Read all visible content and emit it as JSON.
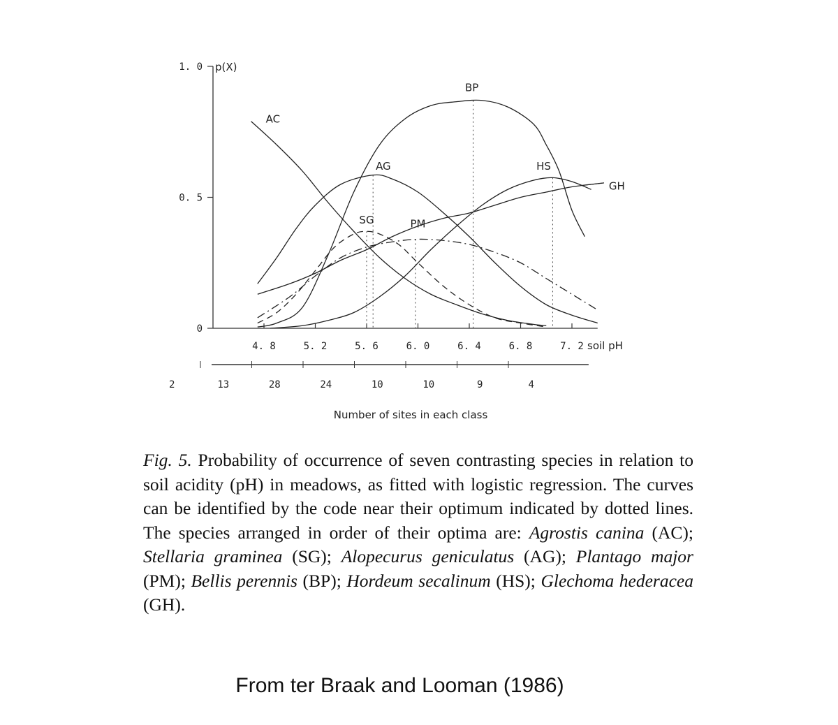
{
  "chart_data": {
    "type": "line",
    "title": "",
    "xlabel": "soil pH",
    "ylabel": "p(X)",
    "xlim": [
      4.55,
      7.4
    ],
    "ylim": [
      0,
      1.0
    ],
    "x_ticks": [
      4.8,
      5.2,
      5.6,
      6.0,
      6.4,
      6.8,
      7.2
    ],
    "x_tick_labels": [
      "4. 8",
      "5. 2",
      "5. 6",
      "6. 0",
      "6. 4",
      "6. 8",
      "7. 2"
    ],
    "y_ticks": [
      0,
      0.5,
      1.0
    ],
    "y_tick_labels": [
      "0",
      "0. 5",
      "1. 0"
    ],
    "grid": false,
    "legend": "none",
    "series": [
      {
        "name": "AC",
        "style": "solid",
        "points": [
          [
            4.7,
            0.79
          ],
          [
            4.9,
            0.7
          ],
          [
            5.1,
            0.6
          ],
          [
            5.3,
            0.48
          ],
          [
            5.5,
            0.37
          ],
          [
            5.7,
            0.27
          ],
          [
            5.9,
            0.19
          ],
          [
            6.1,
            0.13
          ],
          [
            6.3,
            0.09
          ],
          [
            6.5,
            0.055
          ],
          [
            6.7,
            0.03
          ],
          [
            6.9,
            0.015
          ],
          [
            7.0,
            0.01
          ]
        ]
      },
      {
        "name": "SG",
        "style": "dashed",
        "points": [
          [
            4.75,
            0.02
          ],
          [
            4.9,
            0.06
          ],
          [
            5.05,
            0.13
          ],
          [
            5.2,
            0.22
          ],
          [
            5.35,
            0.31
          ],
          [
            5.5,
            0.36
          ],
          [
            5.6,
            0.37
          ],
          [
            5.7,
            0.36
          ],
          [
            5.85,
            0.32
          ],
          [
            6.0,
            0.25
          ],
          [
            6.2,
            0.16
          ],
          [
            6.4,
            0.09
          ],
          [
            6.6,
            0.04
          ],
          [
            6.8,
            0.02
          ],
          [
            7.0,
            0.005
          ]
        ]
      },
      {
        "name": "AG",
        "style": "solid",
        "points": [
          [
            4.75,
            0.17
          ],
          [
            4.9,
            0.27
          ],
          [
            5.05,
            0.38
          ],
          [
            5.2,
            0.47
          ],
          [
            5.4,
            0.55
          ],
          [
            5.65,
            0.585
          ],
          [
            5.8,
            0.57
          ],
          [
            6.0,
            0.52
          ],
          [
            6.2,
            0.44
          ],
          [
            6.4,
            0.35
          ],
          [
            6.6,
            0.25
          ],
          [
            6.8,
            0.16
          ],
          [
            7.0,
            0.09
          ],
          [
            7.2,
            0.05
          ],
          [
            7.4,
            0.02
          ]
        ]
      },
      {
        "name": "PM",
        "style": "dashdot",
        "points": [
          [
            4.75,
            0.04
          ],
          [
            5.0,
            0.12
          ],
          [
            5.2,
            0.2
          ],
          [
            5.4,
            0.27
          ],
          [
            5.6,
            0.31
          ],
          [
            5.8,
            0.33
          ],
          [
            6.0,
            0.34
          ],
          [
            6.2,
            0.335
          ],
          [
            6.4,
            0.32
          ],
          [
            6.6,
            0.29
          ],
          [
            6.8,
            0.25
          ],
          [
            7.0,
            0.19
          ],
          [
            7.2,
            0.13
          ],
          [
            7.4,
            0.07
          ]
        ]
      },
      {
        "name": "BP",
        "style": "solid",
        "points": [
          [
            4.75,
            0.005
          ],
          [
            4.9,
            0.02
          ],
          [
            5.1,
            0.08
          ],
          [
            5.3,
            0.28
          ],
          [
            5.5,
            0.52
          ],
          [
            5.7,
            0.7
          ],
          [
            5.9,
            0.8
          ],
          [
            6.1,
            0.85
          ],
          [
            6.3,
            0.865
          ],
          [
            6.5,
            0.87
          ],
          [
            6.7,
            0.845
          ],
          [
            6.9,
            0.78
          ],
          [
            7.0,
            0.7
          ],
          [
            7.1,
            0.6
          ],
          [
            7.2,
            0.45
          ],
          [
            7.3,
            0.35
          ]
        ]
      },
      {
        "name": "HS",
        "style": "solid",
        "points": [
          [
            4.85,
            0.0
          ],
          [
            5.1,
            0.01
          ],
          [
            5.3,
            0.03
          ],
          [
            5.5,
            0.06
          ],
          [
            5.7,
            0.12
          ],
          [
            5.9,
            0.2
          ],
          [
            6.1,
            0.3
          ],
          [
            6.3,
            0.39
          ],
          [
            6.5,
            0.47
          ],
          [
            6.7,
            0.53
          ],
          [
            6.9,
            0.565
          ],
          [
            7.05,
            0.575
          ],
          [
            7.2,
            0.56
          ],
          [
            7.35,
            0.53
          ]
        ]
      },
      {
        "name": "GH",
        "style": "solid",
        "points": [
          [
            4.75,
            0.13
          ],
          [
            5.0,
            0.17
          ],
          [
            5.2,
            0.21
          ],
          [
            5.4,
            0.26
          ],
          [
            5.6,
            0.3
          ],
          [
            5.8,
            0.35
          ],
          [
            6.0,
            0.39
          ],
          [
            6.2,
            0.42
          ],
          [
            6.4,
            0.44
          ],
          [
            6.6,
            0.47
          ],
          [
            6.8,
            0.5
          ],
          [
            7.0,
            0.52
          ],
          [
            7.2,
            0.54
          ],
          [
            7.45,
            0.555
          ]
        ]
      }
    ],
    "optimum_lines": [
      5.6,
      5.65,
      5.98,
      6.43,
      7.05
    ],
    "curve_labels": [
      "AC",
      "SG",
      "AG",
      "PM",
      "BP",
      "HS",
      "GH"
    ],
    "sites": {
      "label": "Number of sites in each class",
      "counts": [
        "2",
        "13",
        "28",
        "24",
        "10",
        "10",
        "9",
        "4"
      ]
    }
  },
  "caption": {
    "fig": "Fig. 5.",
    "t1": " Probability of occurrence of seven contrasting species in relation to soil acidity (pH) in meadows, as fitted with logistic regression. The curves can be identified by the code near their optimum indicated by dotted lines. The species arranged in order of their optima are: ",
    "s1": "Agrostis canina",
    "t2": " (AC); ",
    "s2": "Stellaria graminea",
    "t3": " (SG); ",
    "s3": "Alopecurus geniculatus",
    "t4": " (AG); ",
    "s4": "Plantago major",
    "t5": " (PM); ",
    "s5": "Bellis perennis",
    "t6": " (BP); ",
    "s6": "Hordeum secalinum",
    "t7": " (HS); ",
    "s7": "Glechoma hederacea",
    "t8": " (GH)."
  },
  "credit": "From ter Braak and Looman (1986)"
}
